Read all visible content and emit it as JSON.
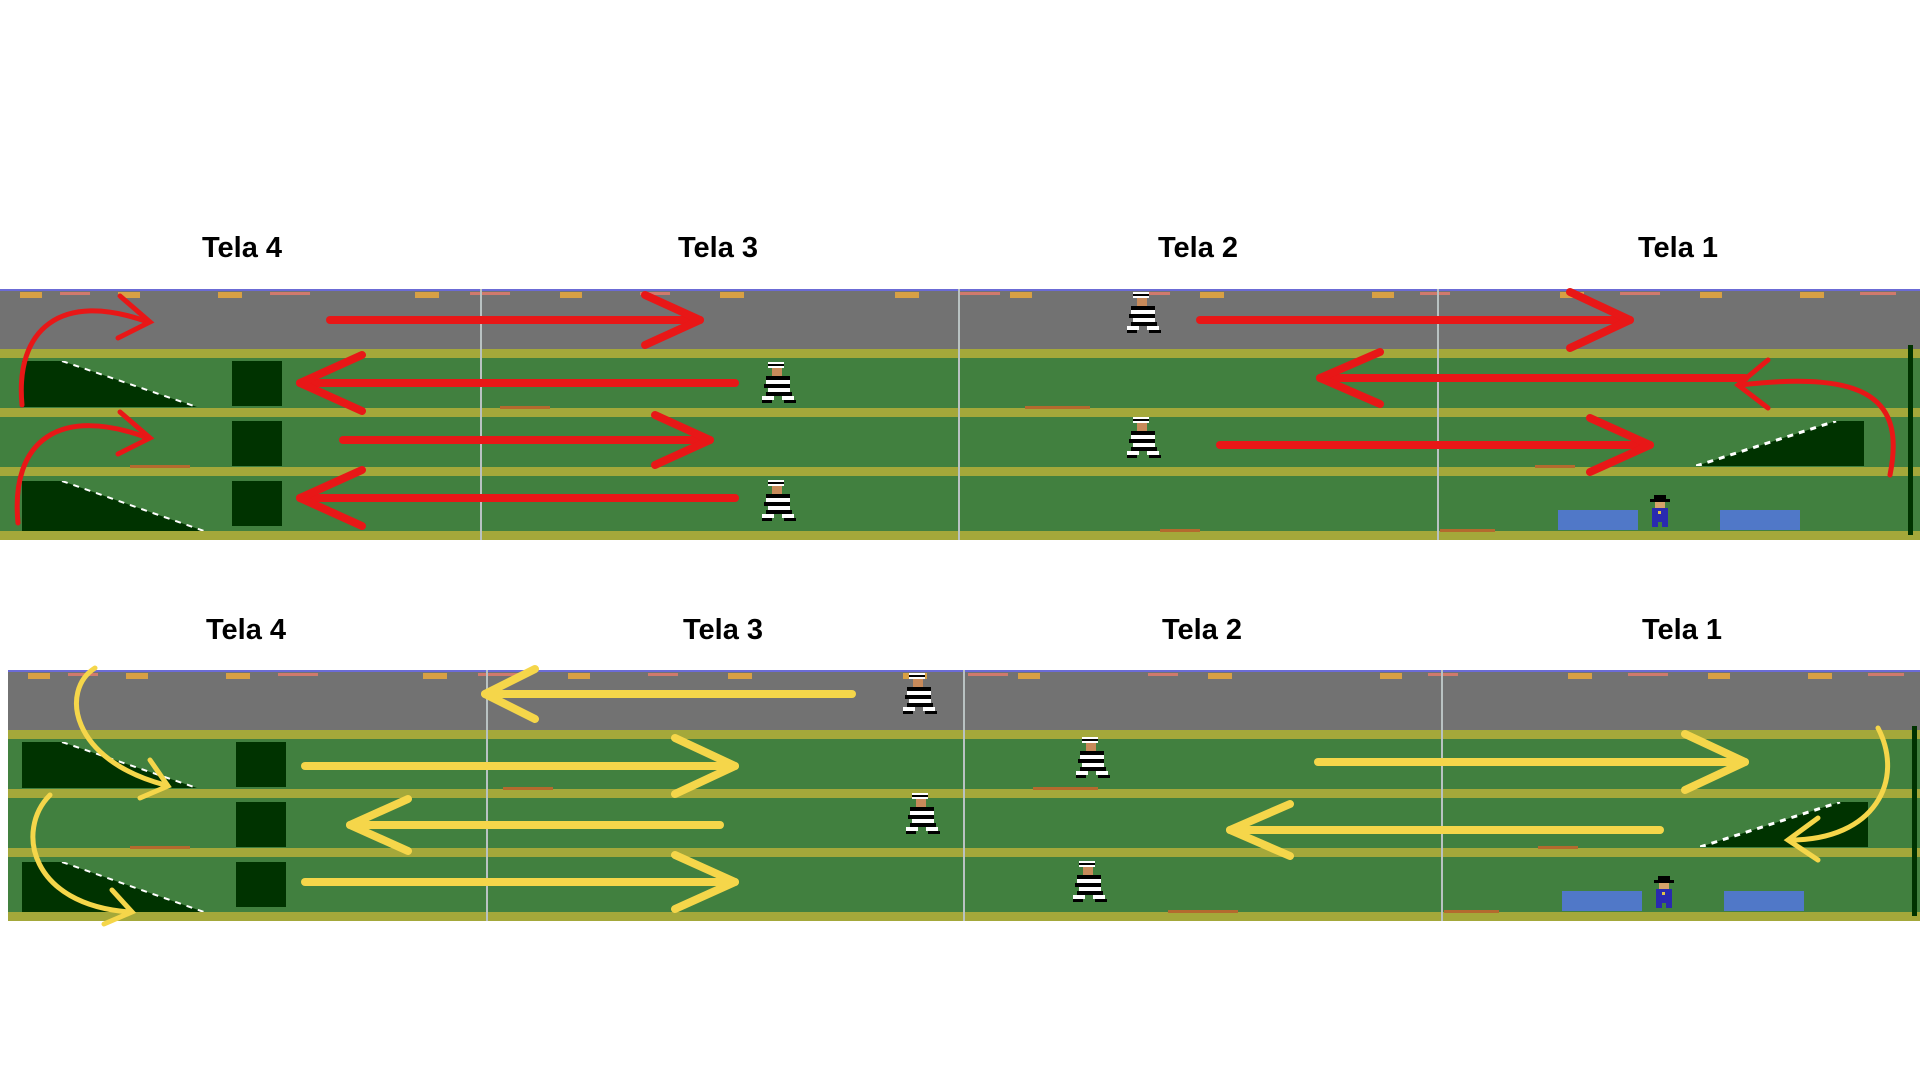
{
  "rows": [
    {
      "id": "red-route",
      "arrow_color": "#e81717",
      "labels": [
        "Tela 4",
        "Tela 3",
        "Tela 2",
        "Tela 1"
      ]
    },
    {
      "id": "yellow-route",
      "arrow_color": "#f5d64a",
      "labels": [
        "Tela 4",
        "Tela 3",
        "Tela 2",
        "Tela 1"
      ]
    }
  ],
  "colors": {
    "street": "#727272",
    "floor": "#41803f",
    "rail": "#a4a83a",
    "elevator": "#003300",
    "crate": "#5078c8"
  },
  "icons": [
    "robber-sprite",
    "cop-sprite",
    "escalator-icon",
    "elevator-icon",
    "crate-icon"
  ]
}
